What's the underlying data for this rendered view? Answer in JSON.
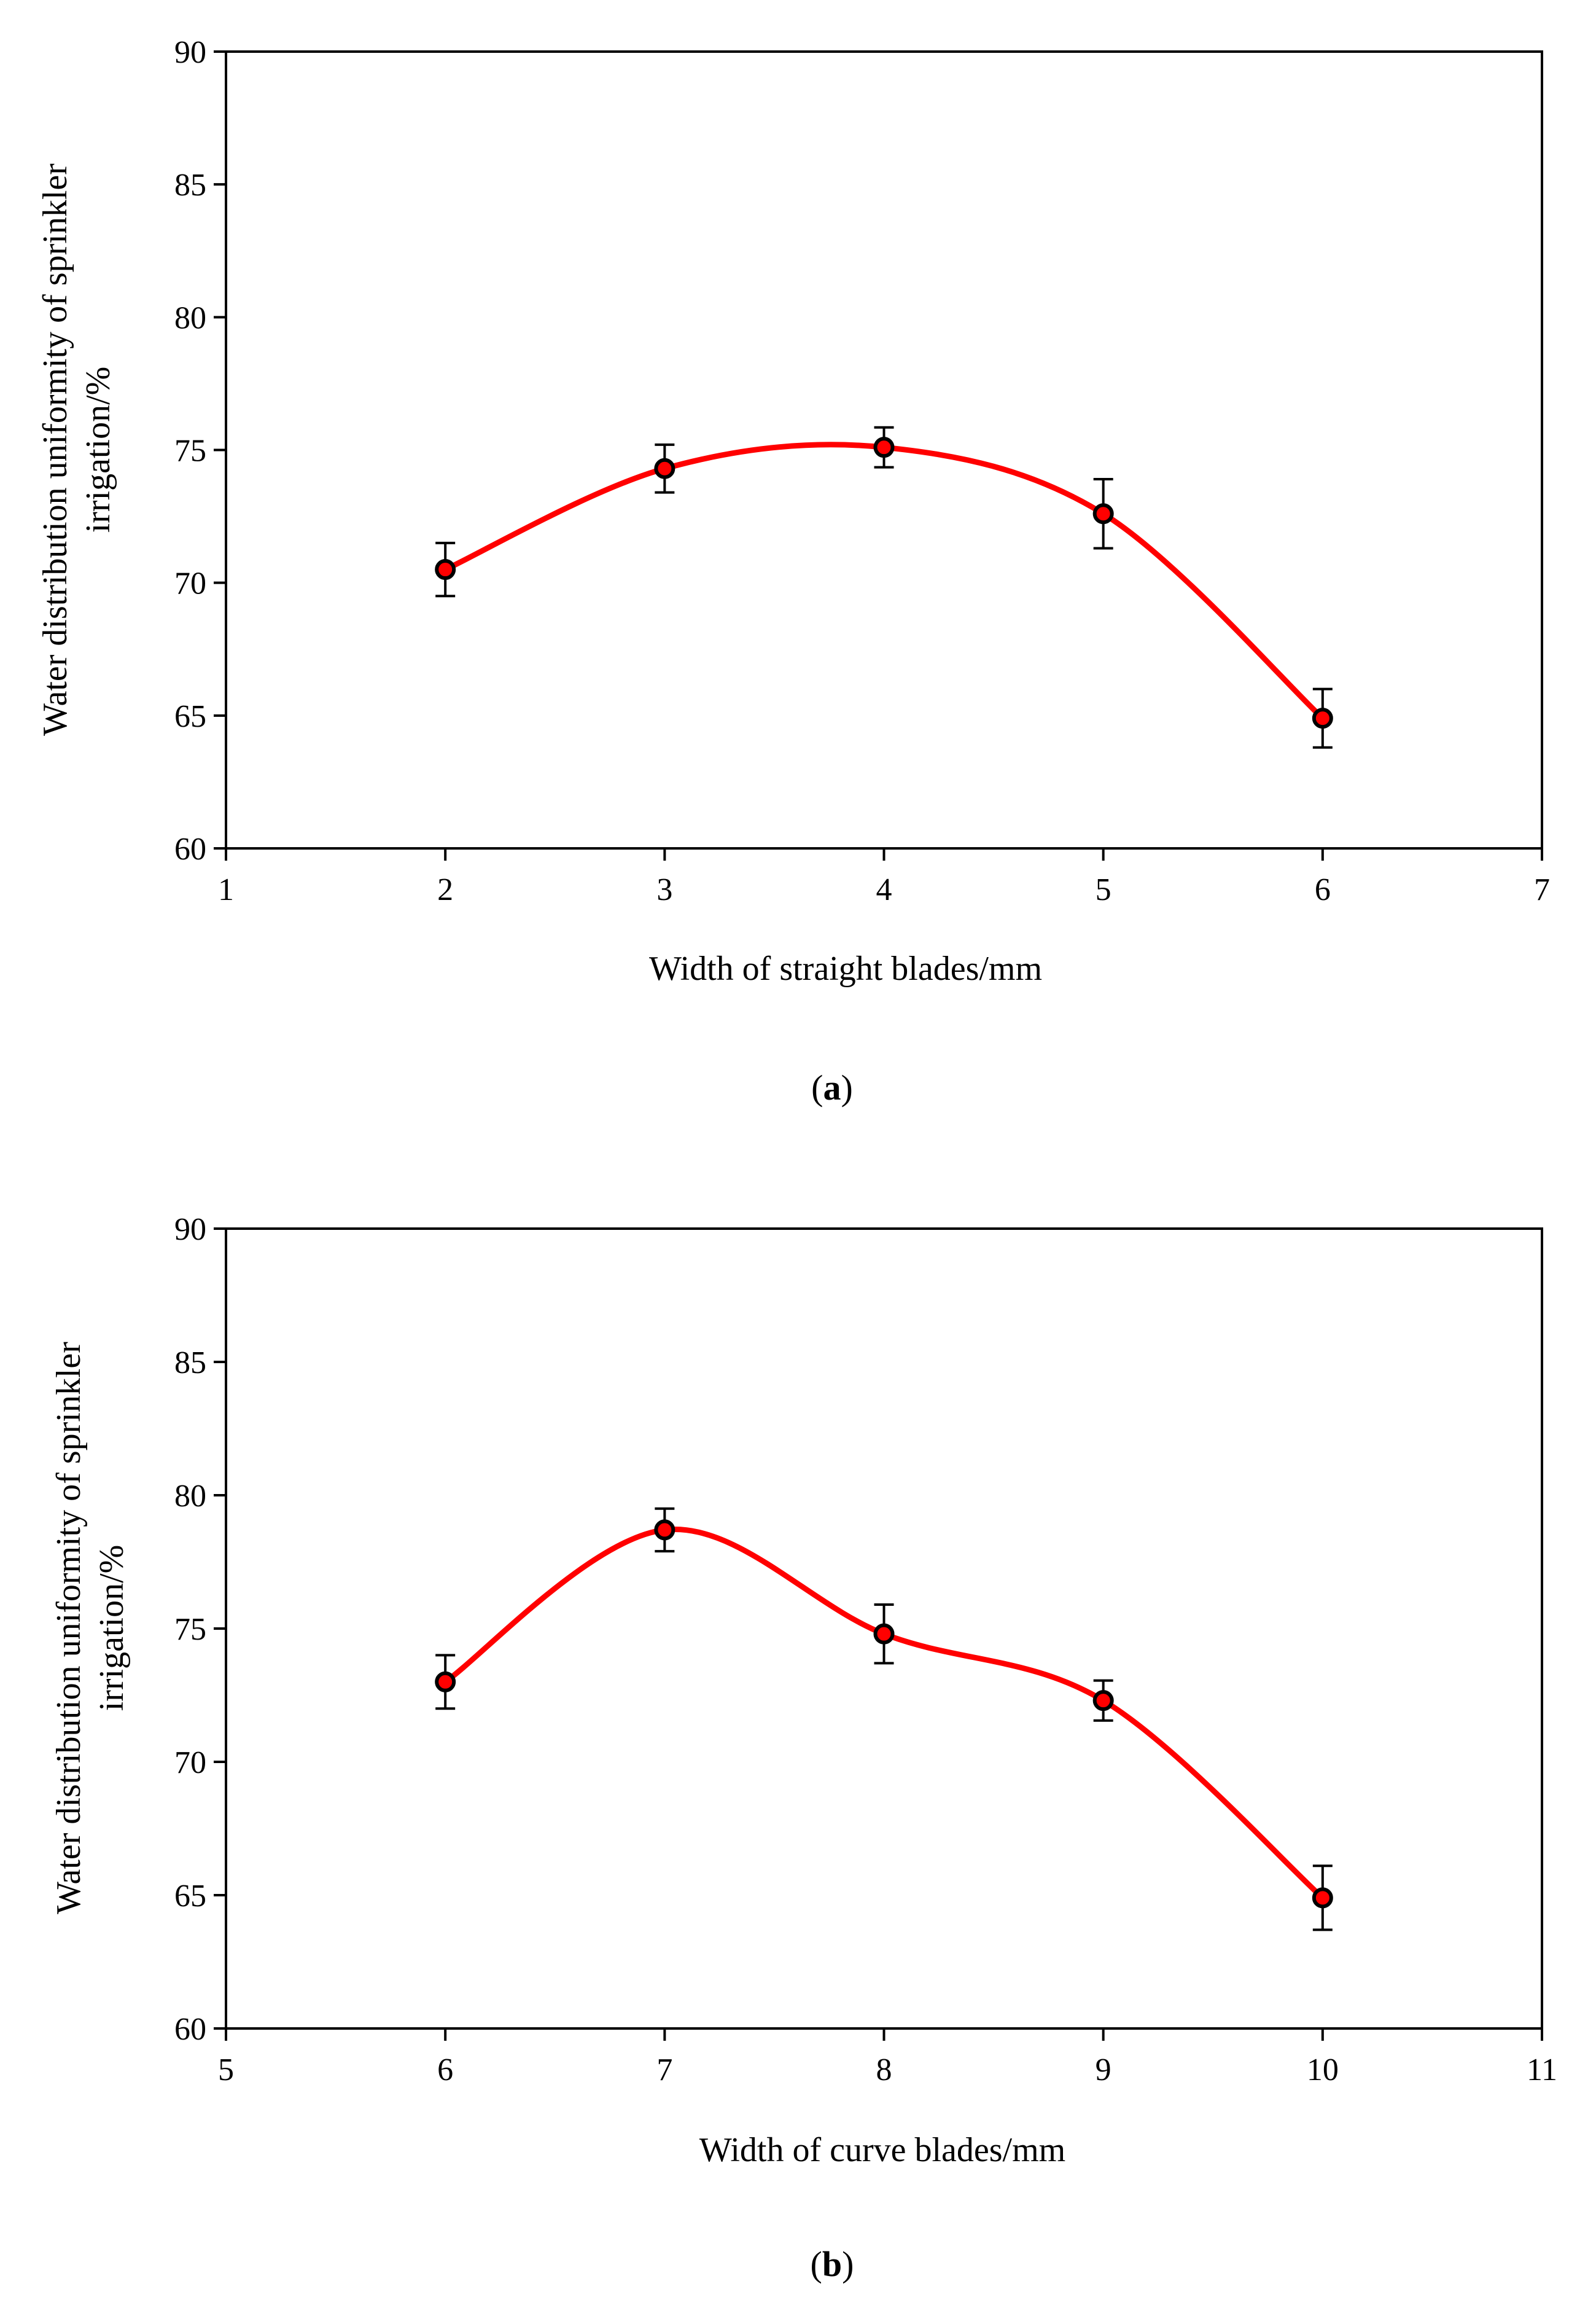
{
  "chart_data": [
    {
      "type": "line",
      "panel_label": "a",
      "xlabel": "Width of straight  blades/mm",
      "ylabel_line1": "Water distribution uniformity of sprinkler",
      "ylabel_line2": "irrigation/%",
      "xlim": [
        1,
        7
      ],
      "ylim": [
        60,
        90
      ],
      "xticks": [
        1,
        2,
        3,
        4,
        5,
        6,
        7
      ],
      "yticks": [
        60,
        65,
        70,
        75,
        80,
        85,
        90
      ],
      "series": [
        {
          "name": "uniformity",
          "color": "#ff0000",
          "marker_color": "#000000",
          "x": [
            2,
            3,
            4,
            5,
            6
          ],
          "values": [
            70.5,
            74.3,
            75.1,
            72.6,
            64.9
          ],
          "errors": [
            1.0,
            0.9,
            0.75,
            1.3,
            1.1
          ]
        }
      ]
    },
    {
      "type": "line",
      "panel_label": "b",
      "xlabel": "Width of curve blades/mm",
      "ylabel_line1": "Water distribution uniformity of sprinkler",
      "ylabel_line2": "irrigation/%",
      "xlim": [
        5,
        11
      ],
      "ylim": [
        60,
        90
      ],
      "xticks": [
        5,
        6,
        7,
        8,
        9,
        10,
        11
      ],
      "yticks": [
        60,
        65,
        70,
        75,
        80,
        85,
        90
      ],
      "series": [
        {
          "name": "uniformity",
          "color": "#ff0000",
          "marker_color": "#000000",
          "x": [
            6,
            7,
            8,
            9,
            10
          ],
          "values": [
            73.0,
            78.7,
            74.8,
            72.3,
            64.9
          ],
          "errors": [
            1.0,
            0.8,
            1.1,
            0.75,
            1.2
          ]
        }
      ]
    }
  ]
}
